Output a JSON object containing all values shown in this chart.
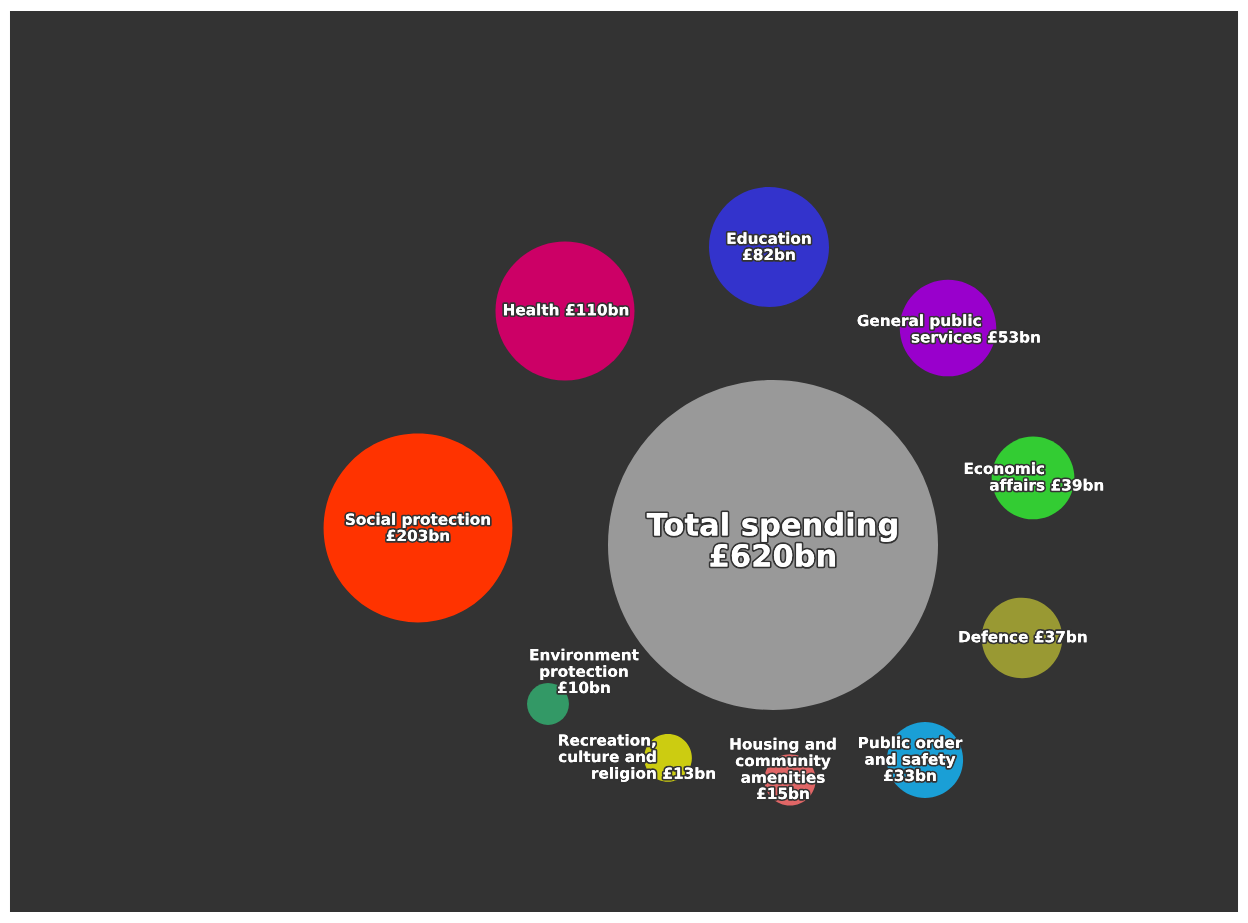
{
  "chart_data": {
    "type": "other",
    "categories": [
      "Total spending",
      "Social protection",
      "Health",
      "Education",
      "General public\nservices",
      "Economic\naffairs",
      "Defence",
      "Public order\nand safety",
      "Housing and\ncommunity\namenities",
      "Recreation,\nculture and\nreligion",
      "Environment\nprotection"
    ],
    "values": [
      620,
      203,
      110,
      82,
      53,
      39,
      37,
      33,
      15,
      13,
      10
    ],
    "value_labels": [
      "£620bn",
      "£203bn",
      "£110bn",
      "£82bn",
      "£53bn",
      "£39bn",
      "£37bn",
      "£33bn",
      "£15bn",
      "£13bn",
      "£10bn"
    ],
    "colors": [
      "#999999",
      "#ff3300",
      "#cc0066",
      "#3333cc",
      "#9900cc",
      "#33cc33",
      "#999933",
      "#1a9fd6",
      "#e06666",
      "#cccc11",
      "#339966"
    ]
  }
}
